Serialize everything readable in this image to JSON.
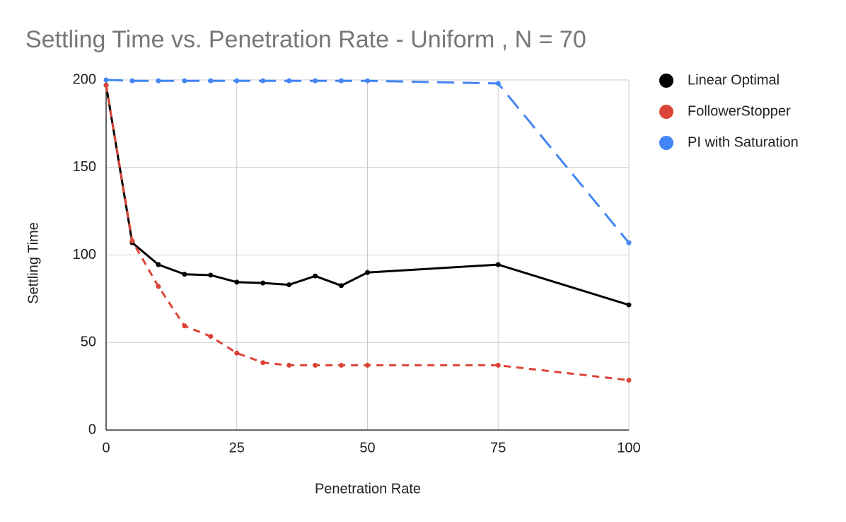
{
  "chart_data": {
    "type": "line",
    "title": "Settling Time vs. Penetration Rate - Uniform , N = 70",
    "x_label": "Penetration Rate",
    "y_label": "Settling Time",
    "x": [
      0,
      5,
      10,
      15,
      20,
      25,
      30,
      35,
      40,
      45,
      50,
      75,
      100
    ],
    "series": [
      {
        "name": "Linear Optimal",
        "color": "#000000",
        "line_style": "solid",
        "values": [
          197,
          107,
          94.5,
          89,
          88.5,
          84.5,
          84,
          83,
          88,
          82.5,
          90,
          94.5,
          71.5
        ]
      },
      {
        "name": "FollowerStopper",
        "color": "#db4437",
        "line_style": "short-dash",
        "values": [
          197,
          108,
          82,
          59.5,
          53.5,
          44,
          38.5,
          37,
          37,
          37,
          37,
          37,
          28.5
        ]
      },
      {
        "name": "PI with Saturation",
        "color": "#4285f4",
        "line_style": "long-dash",
        "values": [
          200,
          199.5,
          199.5,
          199.5,
          199.5,
          199.5,
          199.5,
          199.5,
          199.5,
          199.5,
          199.5,
          198,
          107
        ]
      }
    ],
    "xlim": [
      0,
      100
    ],
    "xticks": [
      0,
      25,
      50,
      75,
      100
    ],
    "ylim": [
      0,
      200
    ],
    "yticks": [
      0,
      50,
      100,
      150,
      200
    ],
    "grid": true,
    "legend": "right"
  }
}
